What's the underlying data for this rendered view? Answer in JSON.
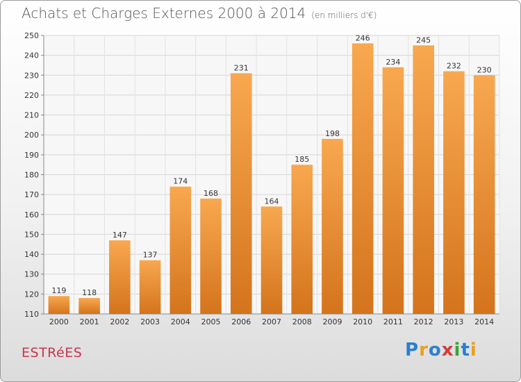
{
  "header": {
    "title": "Achats et Charges Externes 2000 à 2014",
    "unit": "(en milliers d'€)"
  },
  "footer": {
    "place": "ESTRéES",
    "logo_text": "Proxiti"
  },
  "colors": {
    "bar_light": "#f8a850",
    "bar_dark": "#d4741c",
    "title": "#555555",
    "place": "#c8354e"
  },
  "chart_data": {
    "type": "bar",
    "title": "Achats et Charges Externes 2000 à 2014",
    "subtitle": "(en milliers d'€)",
    "categories": [
      "2000",
      "2001",
      "2002",
      "2003",
      "2004",
      "2005",
      "2006",
      "2007",
      "2008",
      "2009",
      "2010",
      "2011",
      "2012",
      "2013",
      "2014"
    ],
    "values": [
      119,
      118,
      147,
      137,
      174,
      168,
      231,
      164,
      185,
      198,
      246,
      234,
      245,
      232,
      230
    ],
    "xlabel": "",
    "ylabel": "",
    "ylim": [
      110,
      250
    ],
    "yticks": [
      110,
      120,
      130,
      140,
      150,
      160,
      170,
      180,
      190,
      200,
      210,
      220,
      230,
      240,
      250
    ],
    "grid": true,
    "legend": "none"
  }
}
